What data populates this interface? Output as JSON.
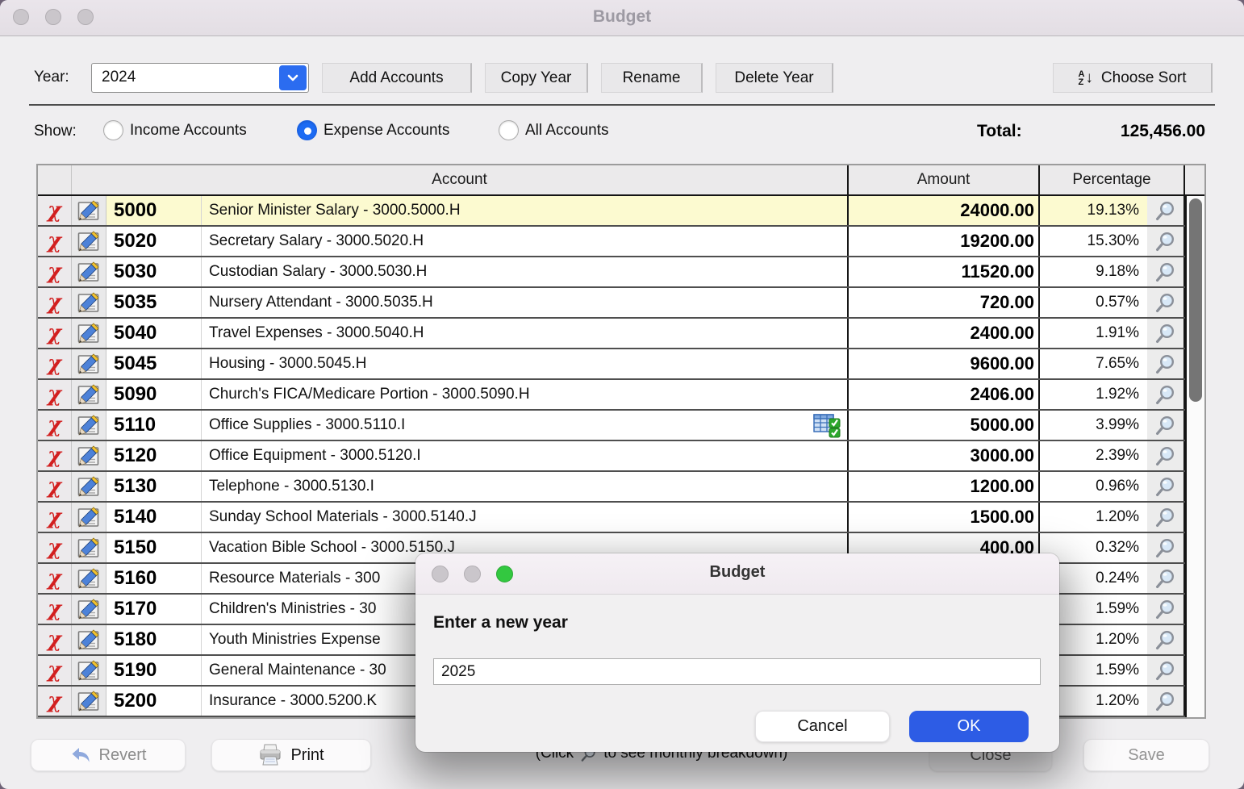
{
  "window": {
    "title": "Budget"
  },
  "toolbar": {
    "year_label": "Year:",
    "year_value": "2024",
    "add_accounts": "Add Accounts",
    "copy_year": "Copy Year",
    "rename": "Rename",
    "delete_year": "Delete Year",
    "choose_sort": "Choose Sort",
    "sort_a": "A",
    "sort_z": "Z",
    "sort_arrow": "↓"
  },
  "filters": {
    "show_label": "Show:",
    "options": [
      {
        "label": "Income Accounts",
        "selected": false
      },
      {
        "label": "Expense Accounts",
        "selected": true
      },
      {
        "label": "All Accounts",
        "selected": false
      }
    ],
    "total_label": "Total:",
    "total_value": "125,456.00"
  },
  "table": {
    "headers": {
      "account": "Account",
      "amount": "Amount",
      "percentage": "Percentage"
    },
    "rows": [
      {
        "number": "5000",
        "name": "Senior Minister Salary - 3000.5000.H",
        "amount": "24000.00",
        "percent": "19.13%",
        "selected": true,
        "monthly_icon": false
      },
      {
        "number": "5020",
        "name": "Secretary Salary - 3000.5020.H",
        "amount": "19200.00",
        "percent": "15.30%",
        "selected": false,
        "monthly_icon": false
      },
      {
        "number": "5030",
        "name": "Custodian Salary - 3000.5030.H",
        "amount": "11520.00",
        "percent": "9.18%",
        "selected": false,
        "monthly_icon": false
      },
      {
        "number": "5035",
        "name": "Nursery Attendant - 3000.5035.H",
        "amount": "720.00",
        "percent": "0.57%",
        "selected": false,
        "monthly_icon": false
      },
      {
        "number": "5040",
        "name": "Travel Expenses - 3000.5040.H",
        "amount": "2400.00",
        "percent": "1.91%",
        "selected": false,
        "monthly_icon": false
      },
      {
        "number": "5045",
        "name": "Housing - 3000.5045.H",
        "amount": "9600.00",
        "percent": "7.65%",
        "selected": false,
        "monthly_icon": false
      },
      {
        "number": "5090",
        "name": "Church's FICA/Medicare Portion - 3000.5090.H",
        "amount": "2406.00",
        "percent": "1.92%",
        "selected": false,
        "monthly_icon": false
      },
      {
        "number": "5110",
        "name": "Office Supplies - 3000.5110.I",
        "amount": "5000.00",
        "percent": "3.99%",
        "selected": false,
        "monthly_icon": true
      },
      {
        "number": "5120",
        "name": "Office Equipment - 3000.5120.I",
        "amount": "3000.00",
        "percent": "2.39%",
        "selected": false,
        "monthly_icon": false
      },
      {
        "number": "5130",
        "name": "Telephone - 3000.5130.I",
        "amount": "1200.00",
        "percent": "0.96%",
        "selected": false,
        "monthly_icon": false
      },
      {
        "number": "5140",
        "name": "Sunday School Materials - 3000.5140.J",
        "amount": "1500.00",
        "percent": "1.20%",
        "selected": false,
        "monthly_icon": false
      },
      {
        "number": "5150",
        "name": "Vacation Bible School - 3000.5150.J",
        "amount": "400.00",
        "percent": "0.32%",
        "selected": false,
        "monthly_icon": false
      },
      {
        "number": "5160",
        "name": "Resource Materials - 300",
        "amount": "",
        "percent": "0.24%",
        "selected": false,
        "monthly_icon": false
      },
      {
        "number": "5170",
        "name": "Children's Ministries - 30",
        "amount": "",
        "percent": "1.59%",
        "selected": false,
        "monthly_icon": false
      },
      {
        "number": "5180",
        "name": "Youth Ministries Expense",
        "amount": "",
        "percent": "1.20%",
        "selected": false,
        "monthly_icon": false
      },
      {
        "number": "5190",
        "name": "General Maintenance - 30",
        "amount": "",
        "percent": "1.59%",
        "selected": false,
        "monthly_icon": false
      },
      {
        "number": "5200",
        "name": "Insurance - 3000.5200.K",
        "amount": "",
        "percent": "1.20%",
        "selected": false,
        "monthly_icon": false
      }
    ]
  },
  "dialog": {
    "title": "Budget",
    "prompt": "Enter a new year",
    "input_value": "2025",
    "cancel_label": "Cancel",
    "ok_label": "OK"
  },
  "footer": {
    "revert_label": "Revert",
    "print_label": "Print",
    "close_label": "Close",
    "save_label": "Save",
    "hint_prefix": "(Click",
    "hint_suffix": "to see monthly breakdown)"
  },
  "icons": {
    "delete_glyph": "χ"
  },
  "colors": {
    "accent_blue": "#2d5ce5",
    "dropdown_blue": "#2b6cf0",
    "radio_blue": "#1d6bf3",
    "selected_row_yellow": "#fcfad0",
    "delete_red": "#d21f1f",
    "dialog_green_light": "#33c840"
  }
}
